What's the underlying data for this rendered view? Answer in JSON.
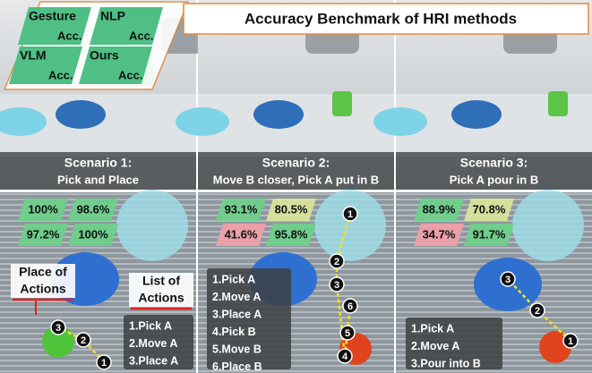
{
  "title": "Accuracy Benchmark of HRI methods",
  "legend": {
    "items": [
      {
        "name": "Gesture",
        "unit": "Acc."
      },
      {
        "name": "NLP",
        "unit": "Acc."
      },
      {
        "name": "VLM",
        "unit": "Acc."
      },
      {
        "name": "Ours",
        "unit": "Acc."
      }
    ]
  },
  "labels": {
    "place": [
      "Place of",
      "Actions"
    ],
    "list": [
      "List of",
      "Actions"
    ]
  },
  "scenarios": [
    {
      "title": "Scenario 1:",
      "subtitle": "Pick and Place",
      "accuracy": [
        "100%",
        "98.6%",
        "97.2%",
        "100%"
      ],
      "actions": [
        "1.Pick A",
        "2.Move A",
        "3.Place A"
      ],
      "markers": [
        "1",
        "2",
        "3"
      ]
    },
    {
      "title": "Scenario 2:",
      "subtitle": "Move B closer, Pick A put in B",
      "accuracy": [
        "93.1%",
        "80.5%",
        "41.6%",
        "95.8%"
      ],
      "actions": [
        "1.Pick A",
        "2.Move A",
        "3.Place A",
        "4.Pick  B",
        "5.Move B",
        "6.Place B"
      ],
      "markers": [
        "1",
        "2",
        "3",
        "6",
        "5",
        "4"
      ]
    },
    {
      "title": "Scenario 3:",
      "subtitle": "Pick A pour in B",
      "accuracy": [
        "88.9%",
        "70.8%",
        "34.7%",
        "91.7%"
      ],
      "actions": [
        "1.Pick A",
        "2.Move A",
        "3.Pour into B"
      ],
      "markers": [
        "1",
        "2",
        "3"
      ]
    }
  ]
}
